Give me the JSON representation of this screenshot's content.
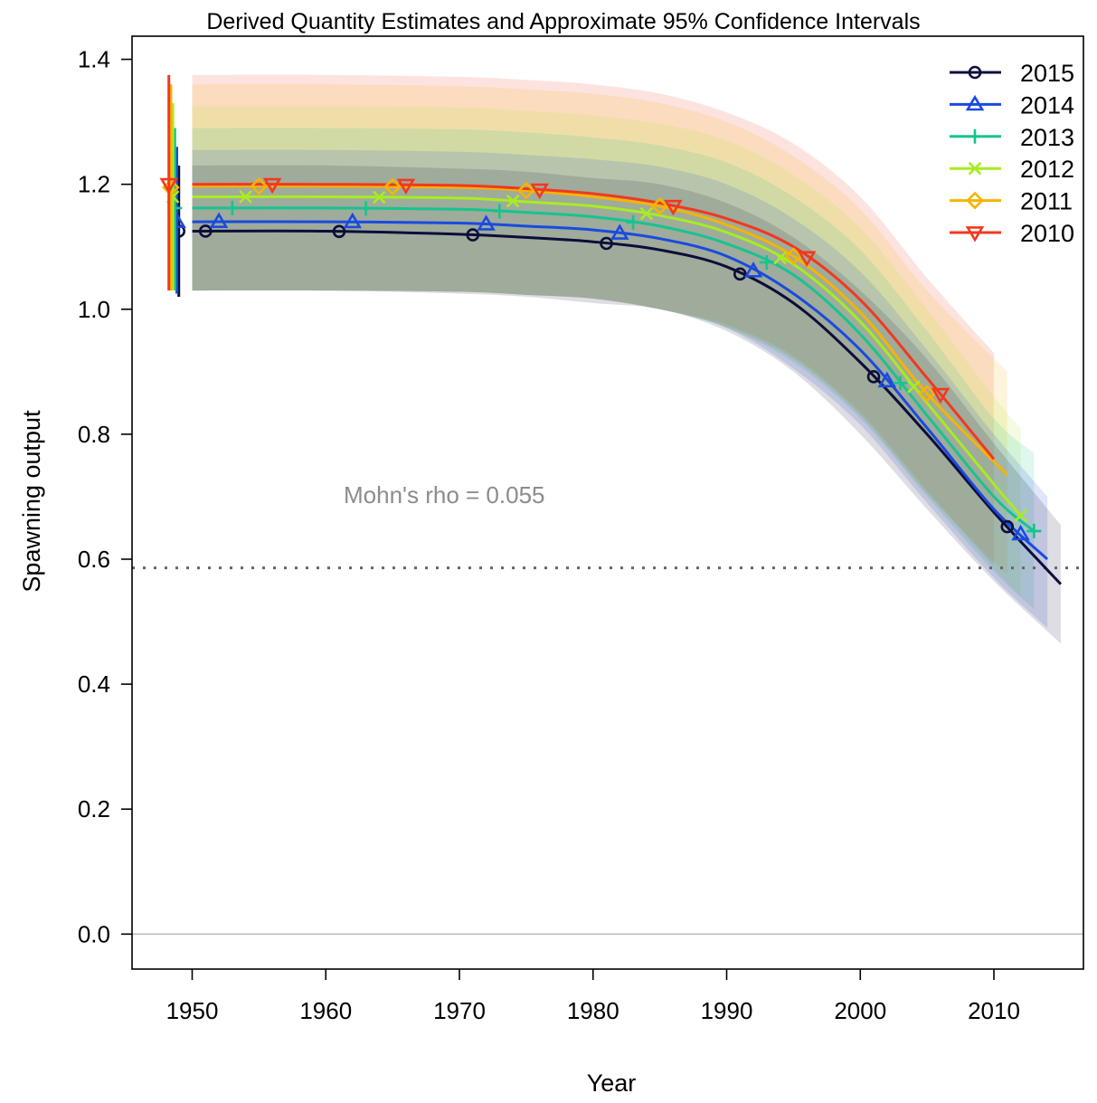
{
  "chart_data": {
    "type": "line",
    "title": "Derived Quantity Estimates and Approximate 95% Confidence Intervals",
    "xlabel": "Year",
    "ylabel": "Spawning output",
    "xlim": [
      1945.5,
      2016.7
    ],
    "ylim": [
      -0.056,
      1.437
    ],
    "x_ticks": [
      "1950",
      "1960",
      "1970",
      "1980",
      "1990",
      "2000",
      "2010"
    ],
    "y_ticks": [
      "0.0",
      "0.2",
      "0.4",
      "0.6",
      "0.8",
      "1.0",
      "1.2",
      "1.4"
    ],
    "reference_line": 0.586,
    "annotation": "Mohn's rho = 0.055",
    "legend_position": "top-right",
    "grid": false,
    "series": [
      {
        "name": "2015",
        "color": "#0d0d3a",
        "marker": "circle",
        "initial": 1.125,
        "initial_ci": [
          1.02,
          1.23
        ],
        "end_year": 2015,
        "x": [
          1950,
          1960,
          1970,
          1975,
          1980,
          1985,
          1990,
          1995,
          2000,
          2005,
          2010,
          2015
        ],
        "y": [
          1.125,
          1.125,
          1.12,
          1.115,
          1.108,
          1.095,
          1.068,
          1.01,
          0.915,
          0.8,
          0.675,
          0.56
        ],
        "lower": [
          1.03,
          1.03,
          1.025,
          1.02,
          1.01,
          1.0,
          0.965,
          0.9,
          0.8,
          0.68,
          0.565,
          0.465
        ],
        "upper": [
          1.23,
          1.23,
          1.225,
          1.22,
          1.21,
          1.2,
          1.17,
          1.115,
          1.03,
          0.92,
          0.785,
          0.655
        ]
      },
      {
        "name": "2014",
        "color": "#1a4adf",
        "marker": "triangle-up",
        "initial": 1.14,
        "initial_ci": [
          1.025,
          1.26
        ],
        "end_year": 2014,
        "x": [
          1950,
          1960,
          1970,
          1975,
          1980,
          1985,
          1990,
          1995,
          2000,
          2005,
          2010,
          2014
        ],
        "y": [
          1.14,
          1.14,
          1.138,
          1.133,
          1.127,
          1.113,
          1.085,
          1.025,
          0.935,
          0.81,
          0.68,
          0.6
        ],
        "lower": [
          1.03,
          1.03,
          1.028,
          1.023,
          1.017,
          1.0,
          0.97,
          0.905,
          0.815,
          0.69,
          0.57,
          0.49
        ],
        "upper": [
          1.255,
          1.255,
          1.252,
          1.247,
          1.24,
          1.228,
          1.2,
          1.145,
          1.06,
          0.935,
          0.8,
          0.7
        ]
      },
      {
        "name": "2013",
        "color": "#16c48e",
        "marker": "plus",
        "initial": 1.162,
        "initial_ci": [
          1.03,
          1.29
        ],
        "end_year": 2013,
        "x": [
          1950,
          1960,
          1970,
          1975,
          1980,
          1985,
          1990,
          1995,
          2000,
          2005,
          2010,
          2013
        ],
        "y": [
          1.162,
          1.162,
          1.16,
          1.155,
          1.148,
          1.133,
          1.105,
          1.055,
          0.96,
          0.83,
          0.7,
          0.645
        ],
        "lower": [
          1.03,
          1.03,
          1.028,
          1.023,
          1.017,
          1.0,
          0.97,
          0.915,
          0.825,
          0.7,
          0.58,
          0.52
        ],
        "upper": [
          1.29,
          1.29,
          1.288,
          1.283,
          1.275,
          1.262,
          1.235,
          1.18,
          1.095,
          0.965,
          0.825,
          0.77
        ]
      },
      {
        "name": "2012",
        "color": "#a8ec22",
        "marker": "cross",
        "initial": 1.18,
        "initial_ci": [
          1.03,
          1.33
        ],
        "end_year": 2012,
        "x": [
          1950,
          1960,
          1970,
          1975,
          1980,
          1985,
          1990,
          1995,
          2000,
          2005,
          2010,
          2012
        ],
        "y": [
          1.18,
          1.18,
          1.178,
          1.172,
          1.165,
          1.15,
          1.123,
          1.072,
          0.98,
          0.85,
          0.72,
          0.67
        ],
        "lower": [
          1.03,
          1.03,
          1.028,
          1.023,
          1.017,
          1.0,
          0.972,
          0.92,
          0.83,
          0.705,
          0.585,
          0.54
        ],
        "upper": [
          1.325,
          1.325,
          1.323,
          1.318,
          1.31,
          1.297,
          1.27,
          1.215,
          1.13,
          1.0,
          0.86,
          0.81
        ]
      },
      {
        "name": "2011",
        "color": "#f6b400",
        "marker": "diamond",
        "initial": 1.195,
        "initial_ci": [
          1.03,
          1.36
        ],
        "end_year": 2011,
        "x": [
          1950,
          1960,
          1970,
          1975,
          1980,
          1985,
          1990,
          1995,
          2000,
          2005,
          2011
        ],
        "y": [
          1.197,
          1.197,
          1.195,
          1.19,
          1.18,
          1.165,
          1.135,
          1.085,
          0.995,
          0.865,
          0.735
        ],
        "lower": [
          1.03,
          1.03,
          1.028,
          1.023,
          1.017,
          1.0,
          0.972,
          0.92,
          0.83,
          0.705,
          0.575
        ],
        "upper": [
          1.36,
          1.36,
          1.357,
          1.352,
          1.345,
          1.33,
          1.3,
          1.245,
          1.16,
          1.03,
          0.9
        ]
      },
      {
        "name": "2010",
        "color": "#f2381f",
        "marker": "triangle-down",
        "initial": 1.2,
        "initial_ci": [
          1.03,
          1.375
        ],
        "end_year": 2010,
        "x": [
          1950,
          1960,
          1970,
          1975,
          1980,
          1985,
          1990,
          1995,
          2000,
          2005,
          2010
        ],
        "y": [
          1.2,
          1.2,
          1.198,
          1.193,
          1.185,
          1.17,
          1.145,
          1.1,
          1.015,
          0.89,
          0.76
        ],
        "lower": [
          1.03,
          1.03,
          1.028,
          1.023,
          1.017,
          1.0,
          0.975,
          0.925,
          0.835,
          0.71,
          0.59
        ],
        "upper": [
          1.375,
          1.375,
          1.372,
          1.367,
          1.36,
          1.345,
          1.315,
          1.265,
          1.18,
          1.05,
          0.93
        ]
      }
    ]
  }
}
